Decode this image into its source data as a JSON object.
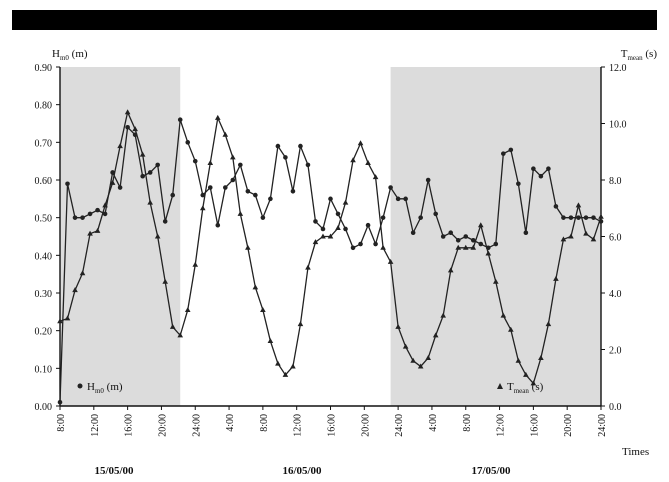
{
  "chart_data": {
    "type": "line",
    "x_unit": "hours",
    "x": [
      0,
      1,
      2,
      3,
      4,
      5,
      6,
      7,
      8,
      9,
      10,
      11,
      12,
      13,
      14,
      15,
      16,
      17,
      18,
      19,
      20,
      21,
      22,
      23,
      24,
      25,
      26,
      27,
      28,
      29,
      30,
      31,
      32,
      33,
      34,
      35,
      36,
      37,
      38,
      39,
      40,
      41,
      42,
      43,
      44,
      45,
      46,
      47,
      48,
      49,
      50,
      51,
      52,
      53,
      54,
      55,
      56,
      57,
      58,
      59,
      60,
      61,
      62,
      63,
      64,
      65,
      66,
      67,
      68,
      69,
      70,
      71,
      72
    ],
    "series": [
      {
        "name": "Hm0 (m)",
        "name_main": "H",
        "name_sub": "m0",
        "name_unit": "(m)",
        "axis": "left",
        "marker": "circle",
        "values": [
          0.01,
          0.59,
          0.5,
          0.5,
          0.51,
          0.52,
          0.51,
          0.62,
          0.58,
          0.74,
          0.72,
          0.61,
          0.62,
          0.64,
          0.49,
          0.56,
          0.76,
          0.7,
          0.65,
          0.56,
          0.58,
          0.48,
          0.58,
          0.6,
          0.64,
          0.57,
          0.56,
          0.5,
          0.55,
          0.69,
          0.66,
          0.57,
          0.69,
          0.64,
          0.49,
          0.47,
          0.55,
          0.51,
          0.47,
          0.42,
          0.43,
          0.48,
          0.43,
          0.5,
          0.58,
          0.55,
          0.55,
          0.46,
          0.5,
          0.6,
          0.51,
          0.45,
          0.46,
          0.44,
          0.45,
          0.44,
          0.43,
          0.42,
          0.43,
          0.67,
          0.68,
          0.59,
          0.46,
          0.63,
          0.61,
          0.63,
          0.53,
          0.5,
          0.5,
          0.5,
          0.5,
          0.5,
          0.49
        ]
      },
      {
        "name": "Tmean (s)",
        "name_main": "T",
        "name_sub": "mean",
        "name_unit": "(s)",
        "axis": "right",
        "marker": "triangle",
        "values": [
          3.0,
          3.1,
          4.1,
          4.7,
          6.1,
          6.2,
          7.1,
          7.9,
          9.2,
          10.4,
          9.8,
          8.9,
          7.2,
          6.0,
          4.4,
          2.8,
          2.5,
          3.4,
          5.0,
          7.0,
          8.6,
          10.2,
          9.6,
          8.8,
          6.8,
          5.6,
          4.2,
          3.4,
          2.3,
          1.5,
          1.1,
          1.4,
          2.9,
          4.9,
          5.8,
          6.0,
          6.0,
          6.3,
          7.2,
          8.7,
          9.3,
          8.6,
          8.1,
          5.6,
          5.1,
          2.8,
          2.1,
          1.6,
          1.4,
          1.7,
          2.5,
          3.2,
          4.8,
          5.6,
          5.6,
          5.6,
          6.4,
          5.4,
          4.4,
          3.2,
          2.7,
          1.6,
          1.1,
          0.8,
          1.7,
          2.9,
          4.5,
          5.9,
          6.0,
          7.1,
          6.1,
          5.9,
          6.7
        ]
      }
    ],
    "y_left": {
      "label_main": "H",
      "label_sub": "m0",
      "label_unit": "(m)",
      "range": [
        0,
        0.9
      ],
      "ticks": [
        "0.00",
        "0.10",
        "0.20",
        "0.30",
        "0.40",
        "0.50",
        "0.60",
        "0.70",
        "0.80",
        "0.90"
      ]
    },
    "y_right": {
      "label_main": "T",
      "label_sub": "mean",
      "label_unit": "(s)",
      "range": [
        0,
        12
      ],
      "ticks": [
        "0.0",
        "2.0",
        "4.0",
        "6.0",
        "8.0",
        "10.0",
        "12.0"
      ]
    },
    "x_axis": {
      "label": "Times",
      "range": [
        0,
        72
      ],
      "tick_labels": [
        "8:00",
        "12:00",
        "16:00",
        "20:00",
        "24:00",
        "4:00",
        "8:00",
        "12:00",
        "16:00",
        "20:00",
        "24:00",
        "4:00",
        "8:00",
        "12:00",
        "16:00",
        "20:00",
        "24:00"
      ],
      "day_labels": [
        "15/05/00",
        "16/05/00",
        "17/05/00"
      ]
    },
    "shaded_ranges": [
      [
        0,
        16
      ],
      [
        44,
        72
      ]
    ],
    "grid": false,
    "legend": [
      {
        "series": "Hm0 (m)",
        "placement": "bottom-left"
      },
      {
        "series": "Tmean (s)",
        "placement": "bottom-right"
      }
    ],
    "colors": {
      "line": "#222222",
      "shade": "#dcdcdc",
      "top_band": "#000000"
    }
  }
}
